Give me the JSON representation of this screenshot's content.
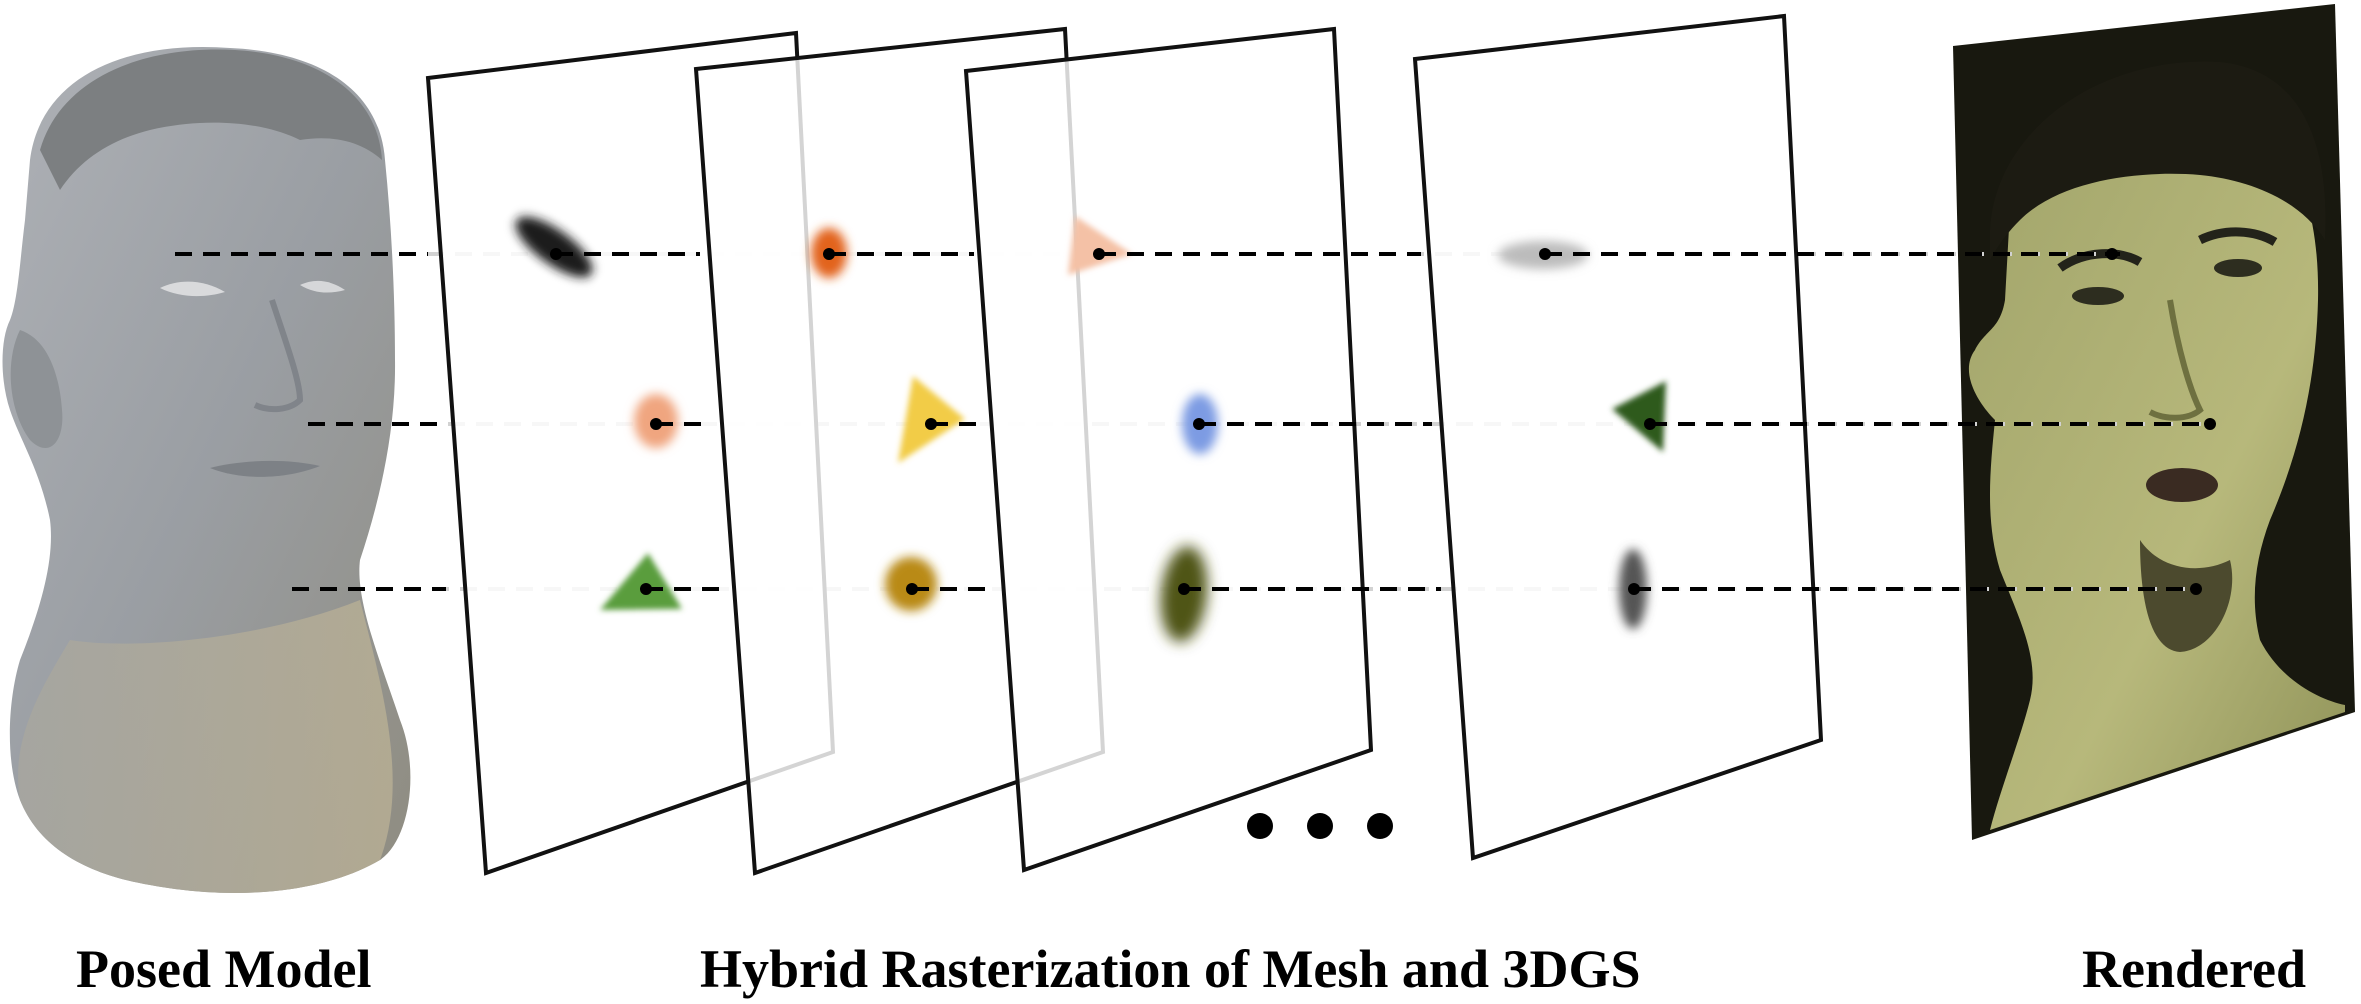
{
  "captions": {
    "left": "Posed Model",
    "middle": "Hybrid Rasterization of Mesh and 3DGS",
    "right": "Rendered"
  },
  "icons": {
    "posed_model": "gray-3d-head-mesh",
    "rendered": "rendered-face-photo",
    "ellipsis": "three-dots"
  },
  "colors": {
    "gaussian_black": "#1a1a1a",
    "gaussian_orange": "#e2631f",
    "gaussian_peach": "#f0a57f",
    "triangle_light_peach": "#f4c1a6",
    "gaussian_light_gray": "#bcbcbc",
    "triangle_yellow": "#f2cc47",
    "gaussian_blue": "#7d9be3",
    "triangle_dark_green": "#2e5a1f",
    "triangle_green": "#5a9d3c",
    "gaussian_mustard": "#b98a16",
    "gaussian_olive": "#4f5418",
    "gaussian_dark_gray": "#555555"
  }
}
